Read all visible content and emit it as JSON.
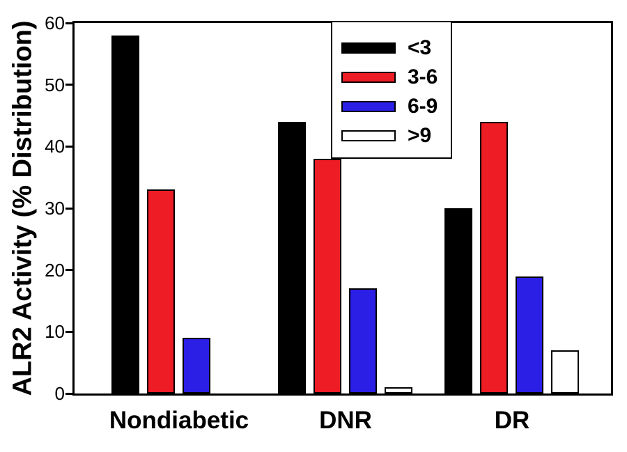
{
  "chart_data": {
    "type": "bar",
    "title": "",
    "xlabel": "",
    "ylabel": "ALR2 Activity (% Distribution)",
    "categories": [
      "Nondiabetic",
      "DNR",
      "DR"
    ],
    "series": [
      {
        "name": "<3",
        "color": "#000000",
        "values": [
          58,
          44,
          30
        ]
      },
      {
        "name": "3-6",
        "color": "#EE1C25",
        "values": [
          33,
          38,
          44
        ]
      },
      {
        "name": "6-9",
        "color": "#2B1FE5",
        "values": [
          9,
          17,
          19
        ]
      },
      {
        "name": ">9",
        "color": "#FFFFFF",
        "values": [
          0,
          1,
          7
        ]
      }
    ],
    "ylim": [
      0,
      60
    ],
    "yticks": [
      0,
      10,
      20,
      30,
      40,
      50,
      60
    ],
    "grid": false,
    "legend_position": "inside-top-center",
    "legend_entries": [
      "<3",
      "3-6",
      "6-9",
      ">9"
    ],
    "axis_color": "#000000",
    "bar_outline_color": "#000000",
    "background": "#FFFFFF"
  }
}
